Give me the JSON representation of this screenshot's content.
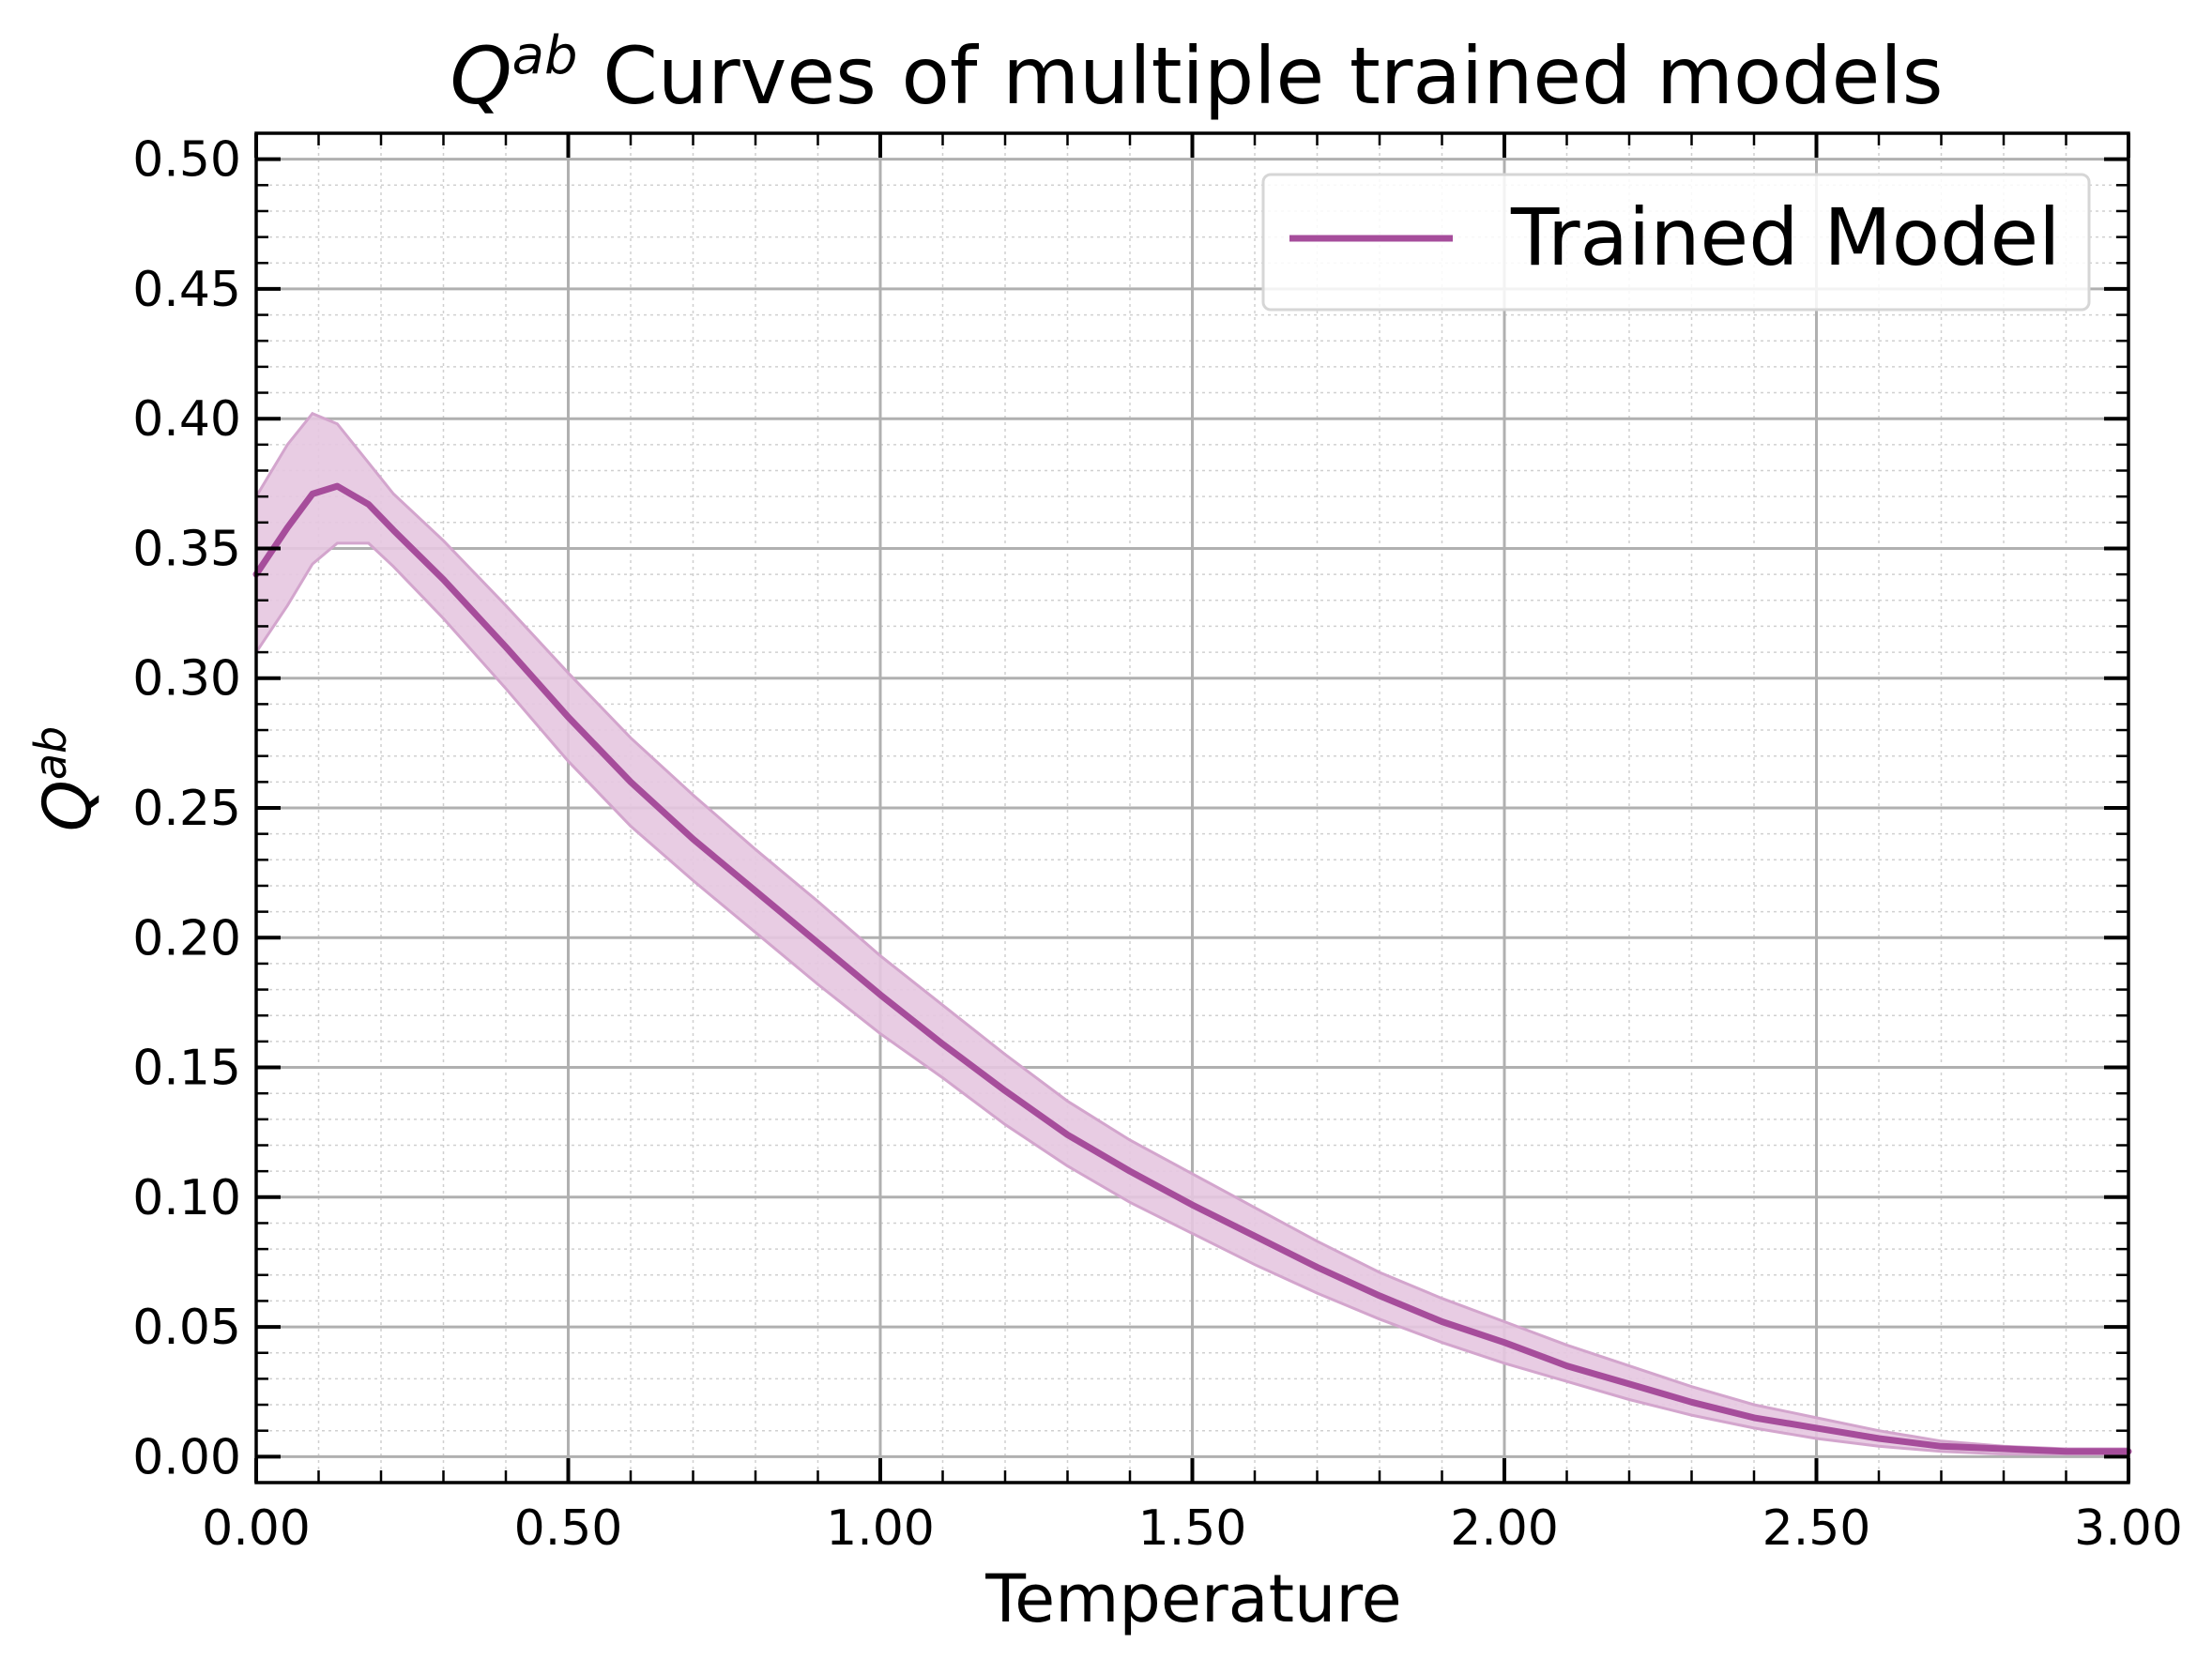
{
  "chart_data": {
    "type": "line",
    "title": {
      "symbol": "Q",
      "superscript": "ab",
      "rest": " Curves of multiple trained models"
    },
    "xlabel": "Temperature",
    "ylabel": {
      "symbol": "Q",
      "superscript": "ab"
    },
    "xlim": [
      0.0,
      3.0
    ],
    "ylim": [
      -0.01,
      0.51
    ],
    "xticks": [
      0.0,
      0.5,
      1.0,
      1.5,
      2.0,
      2.5,
      3.0
    ],
    "xtick_labels": [
      "0.00",
      "0.50",
      "1.00",
      "1.50",
      "2.00",
      "2.50",
      "3.00"
    ],
    "yticks": [
      0.0,
      0.05,
      0.1,
      0.15,
      0.2,
      0.25,
      0.3,
      0.35,
      0.4,
      0.45,
      0.5
    ],
    "ytick_labels": [
      "0.00",
      "0.05",
      "0.10",
      "0.15",
      "0.20",
      "0.25",
      "0.30",
      "0.35",
      "0.40",
      "0.45",
      "0.50"
    ],
    "grid": true,
    "legend_position": "top-right",
    "colors": {
      "line": "#a64d9b",
      "band_fill": "#e5c6e0",
      "band_edge": "#d3a5cd",
      "grid_major": "#b0b0b0",
      "grid_minor": "#d0d0d0"
    },
    "series": [
      {
        "name": "Trained Model",
        "x": [
          0.0,
          0.05,
          0.09,
          0.13,
          0.18,
          0.22,
          0.3,
          0.4,
          0.5,
          0.6,
          0.7,
          0.8,
          0.9,
          1.0,
          1.1,
          1.2,
          1.3,
          1.4,
          1.5,
          1.6,
          1.7,
          1.8,
          1.9,
          2.0,
          2.1,
          2.2,
          2.3,
          2.4,
          2.5,
          2.6,
          2.7,
          2.8,
          2.9,
          3.0
        ],
        "y": [
          0.34,
          0.358,
          0.371,
          0.374,
          0.367,
          0.357,
          0.338,
          0.312,
          0.285,
          0.26,
          0.238,
          0.218,
          0.198,
          0.178,
          0.159,
          0.141,
          0.124,
          0.11,
          0.097,
          0.085,
          0.073,
          0.062,
          0.052,
          0.044,
          0.035,
          0.028,
          0.021,
          0.015,
          0.011,
          0.007,
          0.004,
          0.003,
          0.002,
          0.002
        ],
        "lower": [
          0.31,
          0.328,
          0.344,
          0.352,
          0.352,
          0.343,
          0.323,
          0.296,
          0.268,
          0.243,
          0.222,
          0.202,
          0.182,
          0.163,
          0.146,
          0.128,
          0.112,
          0.098,
          0.086,
          0.074,
          0.063,
          0.053,
          0.044,
          0.036,
          0.029,
          0.022,
          0.016,
          0.011,
          0.007,
          0.004,
          0.002,
          0.001,
          0.001,
          0.001
        ],
        "upper": [
          0.37,
          0.39,
          0.402,
          0.398,
          0.383,
          0.371,
          0.353,
          0.328,
          0.302,
          0.277,
          0.255,
          0.234,
          0.214,
          0.193,
          0.174,
          0.155,
          0.137,
          0.122,
          0.109,
          0.096,
          0.083,
          0.071,
          0.061,
          0.052,
          0.043,
          0.035,
          0.027,
          0.02,
          0.015,
          0.01,
          0.006,
          0.004,
          0.003,
          0.003
        ]
      }
    ]
  }
}
